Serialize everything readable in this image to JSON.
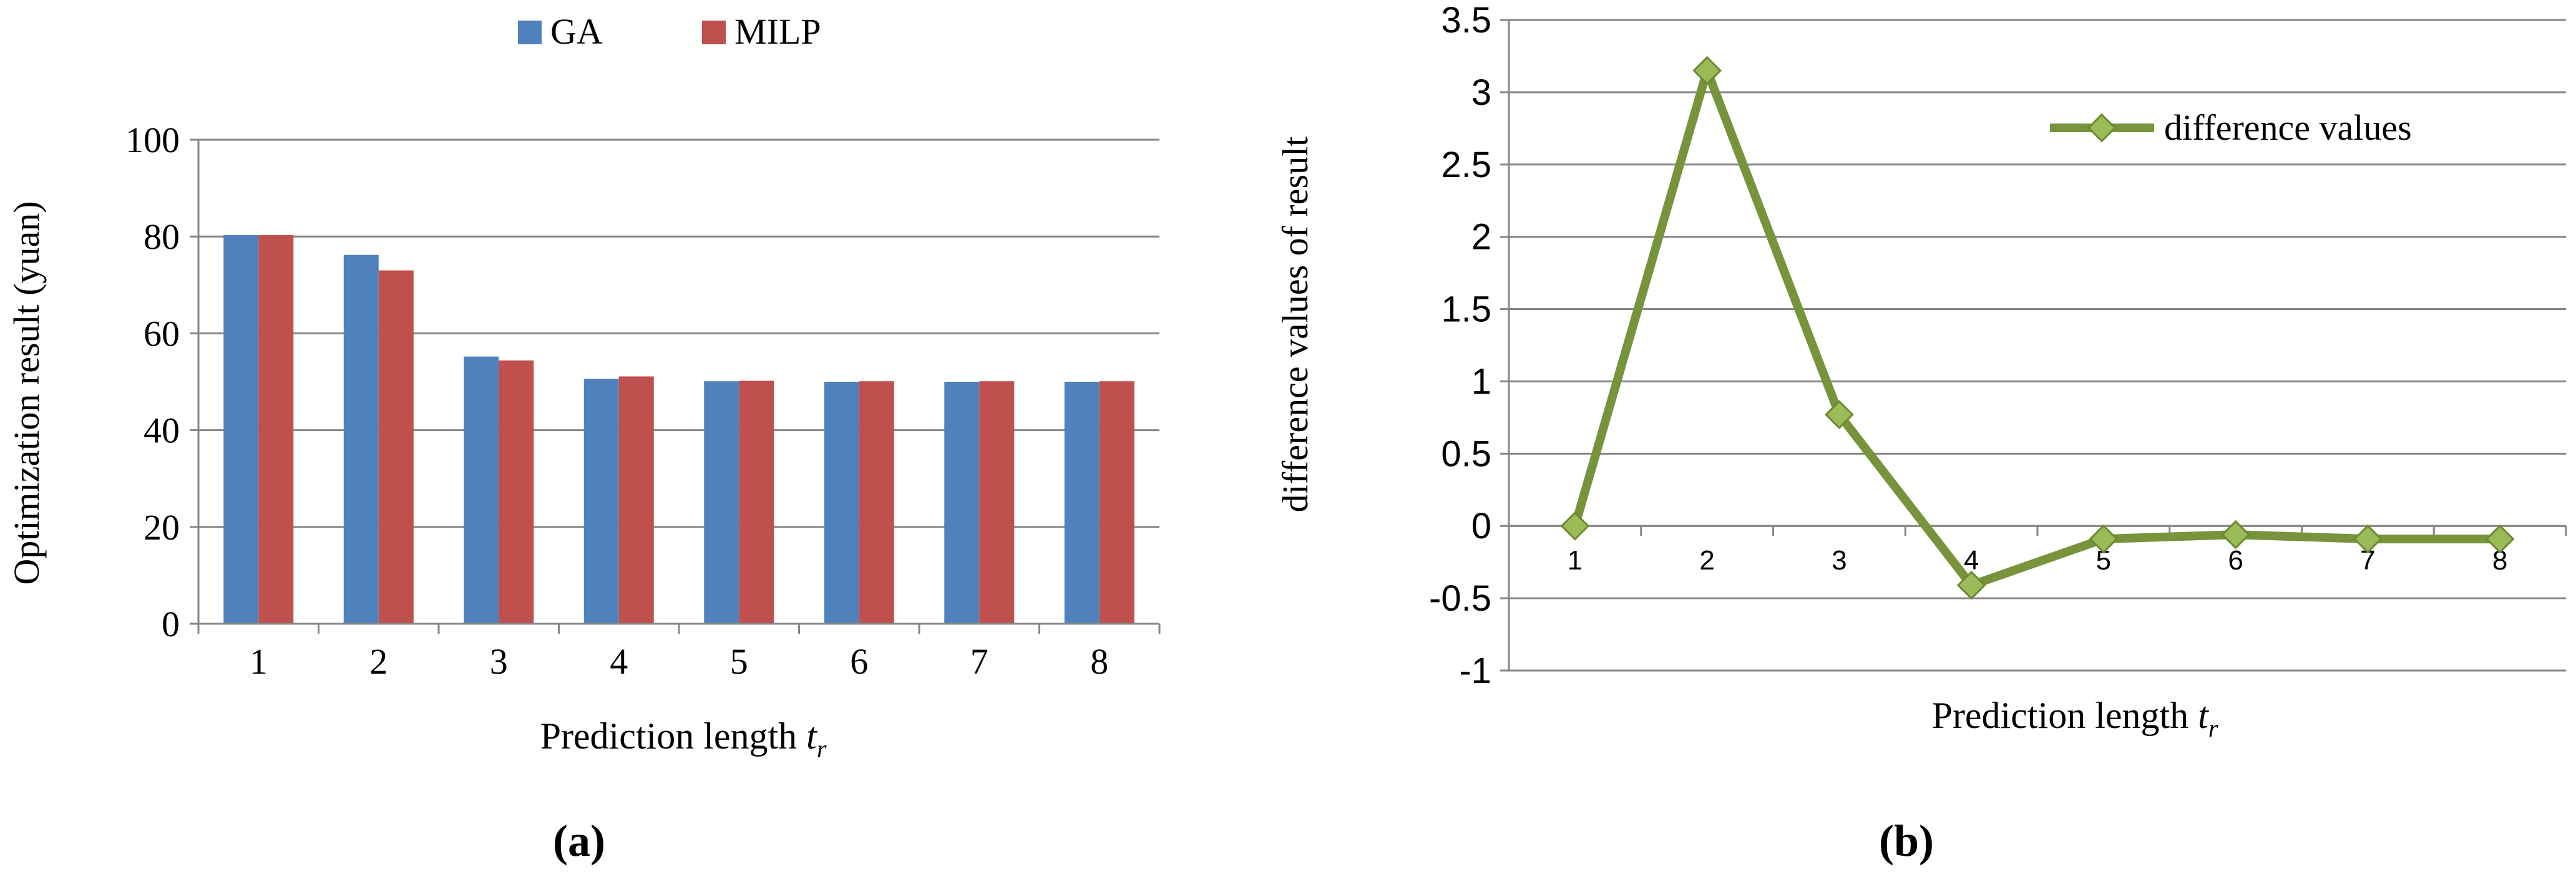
{
  "chart_data": [
    {
      "type": "bar",
      "panel_label": "(a)",
      "title": "",
      "xlabel": "Prediction length",
      "xlabel_var": "t",
      "xlabel_sub": "r",
      "ylabel": "Optimization result (yuan)",
      "ylim": [
        0,
        100
      ],
      "yticks": [
        0,
        20,
        40,
        60,
        80,
        100
      ],
      "categories": [
        "1",
        "2",
        "3",
        "4",
        "5",
        "6",
        "7",
        "8"
      ],
      "series": [
        {
          "name": "GA",
          "color": "#4f81bd",
          "values": [
            80.3,
            76.2,
            55.2,
            50.6,
            50.1,
            50.0,
            50.0,
            50.0
          ]
        },
        {
          "name": "MILP",
          "color": "#c0504d",
          "values": [
            80.3,
            73.0,
            54.4,
            51.1,
            50.2,
            50.1,
            50.1,
            50.1
          ]
        }
      ],
      "grid": true,
      "legend_position": "top"
    },
    {
      "type": "line",
      "panel_label": "(b)",
      "title": "",
      "xlabel": "Prediction length",
      "xlabel_var": "t",
      "xlabel_sub": "r",
      "ylabel": "difference values of result",
      "ylim": [
        -1,
        3.5
      ],
      "yticks": [
        -1,
        -0.5,
        0,
        0.5,
        1,
        1.5,
        2,
        2.5,
        3,
        3.5
      ],
      "x": [
        "1",
        "2",
        "3",
        "4",
        "5",
        "6",
        "7",
        "8"
      ],
      "series": [
        {
          "name": "difference values",
          "color": "#77933c",
          "values": [
            0,
            3.15,
            0.77,
            -0.41,
            -0.09,
            -0.06,
            -0.09,
            -0.09
          ]
        }
      ],
      "grid": true,
      "legend_position": "top-right"
    }
  ]
}
